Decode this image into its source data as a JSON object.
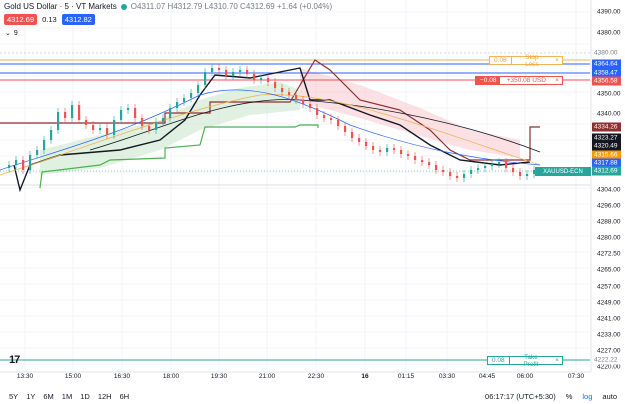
{
  "header": {
    "symbol": "Gold US Dollar · 5 · VT Markets",
    "status_color": "#26a69a",
    "ohlc": "O4311.07 H4312.79 L4310.70 C4312.69 +1.64 (+0.04%)",
    "sell_price": "4312.69",
    "spread": "0.13",
    "buy_price": "4312.82",
    "sell_color": "#ef5350",
    "buy_color": "#2962ff",
    "indicators_toggle": "⌄",
    "indicators_count": "9"
  },
  "price_axis": {
    "ticks": [
      "4390.00",
      "4380.00",
      "4370.00",
      "4350.00",
      "4340.00",
      "4304.00",
      "4296.00",
      "4288.00",
      "4280.00",
      "4272.50",
      "4265.00",
      "4257.00",
      "4249.00",
      "4241.00",
      "4233.00",
      "4227.00",
      "4220.00"
    ],
    "tags": [
      {
        "value": "4380.00",
        "color": "#ffffff",
        "text_color": "#787b86"
      },
      {
        "value": "4364.64",
        "color": "#2962ff",
        "text_color": "#ffffff"
      },
      {
        "value": "4358.47",
        "color": "#2962ff",
        "text_color": "#ffffff"
      },
      {
        "value": "4356.58",
        "color": "#ef5350",
        "text_color": "#ffffff"
      },
      {
        "value": "4334.26",
        "color": "#8d2f2f",
        "text_color": "#ffffff"
      },
      {
        "value": "4323.27",
        "color": "#131722",
        "text_color": "#ffffff"
      },
      {
        "value": "4320.49",
        "color": "#131722",
        "text_color": "#ffffff"
      },
      {
        "value": "4315.66",
        "color": "#ff9800",
        "text_color": "#ffffff"
      },
      {
        "value": "4317.88",
        "color": "#2962ff",
        "text_color": "#ffffff"
      },
      {
        "value": "4312.69",
        "color": "#26a69a",
        "text_color": "#ffffff"
      },
      {
        "value": "4222.22",
        "color": "#ffffff",
        "text_color": "#787b86"
      }
    ]
  },
  "orders": {
    "stop_loss": {
      "qty": "0.08",
      "label": "Stop Loss",
      "close": "×",
      "color": "#f0b45a"
    },
    "position": {
      "qty": "−0.08",
      "pnl": "+350.08 USD",
      "close": "×",
      "color": "#ef5350"
    },
    "take_profit": {
      "qty": "0.08",
      "label": "Take Profit",
      "close": "×",
      "color": "#26a69a"
    },
    "symbol_tag": "XAUUSD-ECN"
  },
  "time_axis": [
    "13:30",
    "15:00",
    "16:30",
    "18:00",
    "19:30",
    "21:00",
    "22:30",
    "16",
    "01:15",
    "03:30",
    "04:45",
    "06:00",
    "07:30"
  ],
  "bottom_bar": {
    "timeframes": [
      "5Y",
      "1Y",
      "6M",
      "1M",
      "1D",
      "12H",
      "6H"
    ],
    "clock": "06:17:17 (UTC+5:30)",
    "percent": "%",
    "log": "log",
    "auto": "auto"
  },
  "logo": "17"
}
